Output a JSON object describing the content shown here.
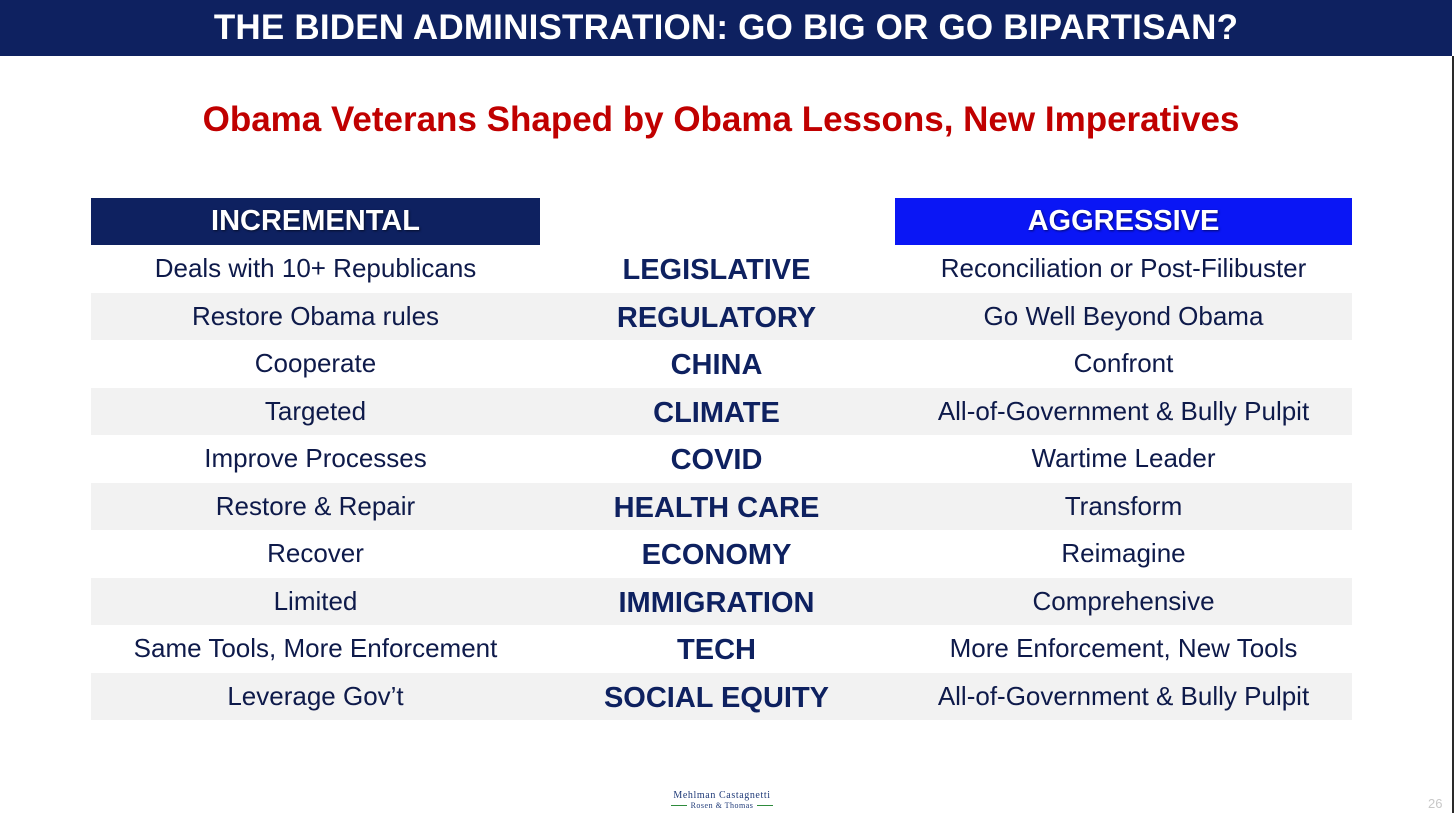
{
  "title": "THE BIDEN ADMINISTRATION: GO BIG OR GO BIPARTISAN?",
  "subtitle": "Obama Veterans Shaped by Obama Lessons, New Imperatives",
  "headers": {
    "left": "INCREMENTAL",
    "right": "AGGRESSIVE"
  },
  "rows": [
    {
      "left": "Deals with 10+ Republicans",
      "topic": "LEGISLATIVE",
      "right": "Reconciliation or Post-Filibuster"
    },
    {
      "left": "Restore Obama rules",
      "topic": "REGULATORY",
      "right": "Go Well Beyond Obama"
    },
    {
      "left": "Cooperate",
      "topic": "CHINA",
      "right": "Confront"
    },
    {
      "left": "Targeted",
      "topic": "CLIMATE",
      "right": "All-of-Government & Bully Pulpit"
    },
    {
      "left": "Improve Processes",
      "topic": "COVID",
      "right": "Wartime Leader"
    },
    {
      "left": "Restore & Repair",
      "topic": "HEALTH CARE",
      "right": "Transform"
    },
    {
      "left": "Recover",
      "topic": "ECONOMY",
      "right": "Reimagine"
    },
    {
      "left": "Limited",
      "topic": "IMMIGRATION",
      "right": "Comprehensive"
    },
    {
      "left": "Same Tools, More Enforcement",
      "topic": "TECH",
      "right": "More Enforcement, New Tools"
    },
    {
      "left": "Leverage Gov’t",
      "topic": "SOCIAL EQUITY",
      "right": "All-of-Government & Bully Pulpit"
    }
  ],
  "logo": {
    "line1": "Mehlman Castagnetti",
    "line2": "Rosen & Thomas"
  },
  "page_number": "26",
  "colors": {
    "title_bar": "#0e2160",
    "subtitle": "#c00000",
    "incremental_header": "#0e2160",
    "aggressive_header": "#0a16f5",
    "row_shade": "#f2f2f2"
  }
}
